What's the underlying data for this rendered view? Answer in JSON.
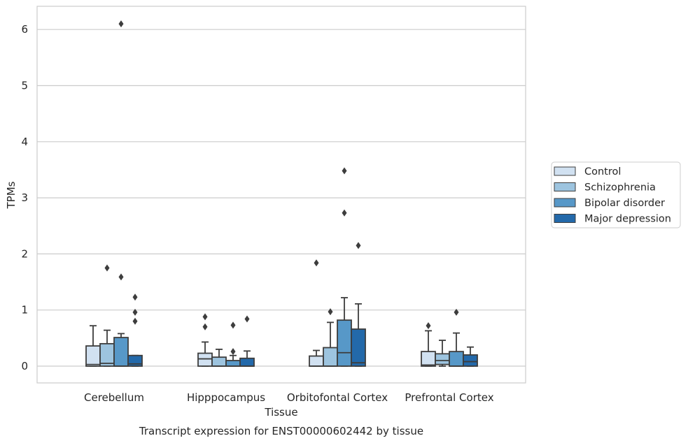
{
  "chart_data": {
    "type": "box",
    "caption": "Transcript expression for ENST00000602442 by tissue",
    "xlabel": "Tissue",
    "ylabel": "TPMs",
    "ylim": [
      -0.3,
      6.42
    ],
    "yticks": [
      0,
      1,
      2,
      3,
      4,
      5,
      6
    ],
    "grid": "horizontal",
    "legend_position": "right",
    "categories": [
      "Cerebellum",
      "Hipppocampus",
      "Orbitofontal Cortex",
      "Prefrontal Cortex"
    ],
    "series": [
      {
        "name": "Control",
        "color": "#d1e1f1",
        "boxes": [
          {
            "q1": 0.0,
            "median": 0.03,
            "q3": 0.36,
            "whisker_low": 0.0,
            "whisker_high": 0.72,
            "outliers": []
          },
          {
            "q1": 0.0,
            "median": 0.13,
            "q3": 0.23,
            "whisker_low": 0.0,
            "whisker_high": 0.43,
            "outliers": [
              0.88,
              0.7
            ]
          },
          {
            "q1": 0.0,
            "median": 0.0,
            "q3": 0.18,
            "whisker_low": 0.0,
            "whisker_high": 0.28,
            "outliers": [
              1.84
            ]
          },
          {
            "q1": 0.0,
            "median": 0.02,
            "q3": 0.26,
            "whisker_low": 0.0,
            "whisker_high": 0.63,
            "outliers": [
              0.72
            ]
          }
        ]
      },
      {
        "name": "Schizophrenia",
        "color": "#9dc4df",
        "boxes": [
          {
            "q1": 0.0,
            "median": 0.05,
            "q3": 0.4,
            "whisker_low": 0.0,
            "whisker_high": 0.64,
            "outliers": [
              1.75
            ]
          },
          {
            "q1": 0.0,
            "median": 0.0,
            "q3": 0.16,
            "whisker_low": 0.0,
            "whisker_high": 0.3,
            "outliers": []
          },
          {
            "q1": 0.0,
            "median": 0.0,
            "q3": 0.33,
            "whisker_low": 0.0,
            "whisker_high": 0.78,
            "outliers": [
              0.97
            ]
          },
          {
            "q1": 0.03,
            "median": 0.1,
            "q3": 0.22,
            "whisker_low": 0.0,
            "whisker_high": 0.46,
            "outliers": []
          }
        ]
      },
      {
        "name": "Bipolar disorder",
        "color": "#5798c8",
        "boxes": [
          {
            "q1": 0.0,
            "median": 0.0,
            "q3": 0.51,
            "whisker_low": 0.0,
            "whisker_high": 0.58,
            "outliers": [
              6.1,
              1.59
            ]
          },
          {
            "q1": 0.0,
            "median": 0.0,
            "q3": 0.1,
            "whisker_low": 0.0,
            "whisker_high": 0.19,
            "outliers": [
              0.73,
              0.26
            ]
          },
          {
            "q1": 0.0,
            "median": 0.24,
            "q3": 0.82,
            "whisker_low": 0.0,
            "whisker_high": 1.22,
            "outliers": [
              3.48,
              2.73
            ]
          },
          {
            "q1": 0.0,
            "median": 0.0,
            "q3": 0.26,
            "whisker_low": 0.0,
            "whisker_high": 0.59,
            "outliers": [
              0.96
            ]
          }
        ]
      },
      {
        "name": "Major depression",
        "color": "#2369aa",
        "boxes": [
          {
            "q1": 0.0,
            "median": 0.04,
            "q3": 0.19,
            "whisker_low": 0.0,
            "whisker_high": 0.19,
            "outliers": [
              1.23,
              0.96,
              0.8
            ]
          },
          {
            "q1": 0.0,
            "median": 0.0,
            "q3": 0.14,
            "whisker_low": 0.0,
            "whisker_high": 0.27,
            "outliers": [
              0.84
            ]
          },
          {
            "q1": 0.0,
            "median": 0.06,
            "q3": 0.66,
            "whisker_low": 0.0,
            "whisker_high": 1.11,
            "outliers": [
              2.15
            ]
          },
          {
            "q1": 0.0,
            "median": 0.08,
            "q3": 0.2,
            "whisker_low": 0.0,
            "whisker_high": 0.34,
            "outliers": []
          }
        ]
      }
    ]
  }
}
